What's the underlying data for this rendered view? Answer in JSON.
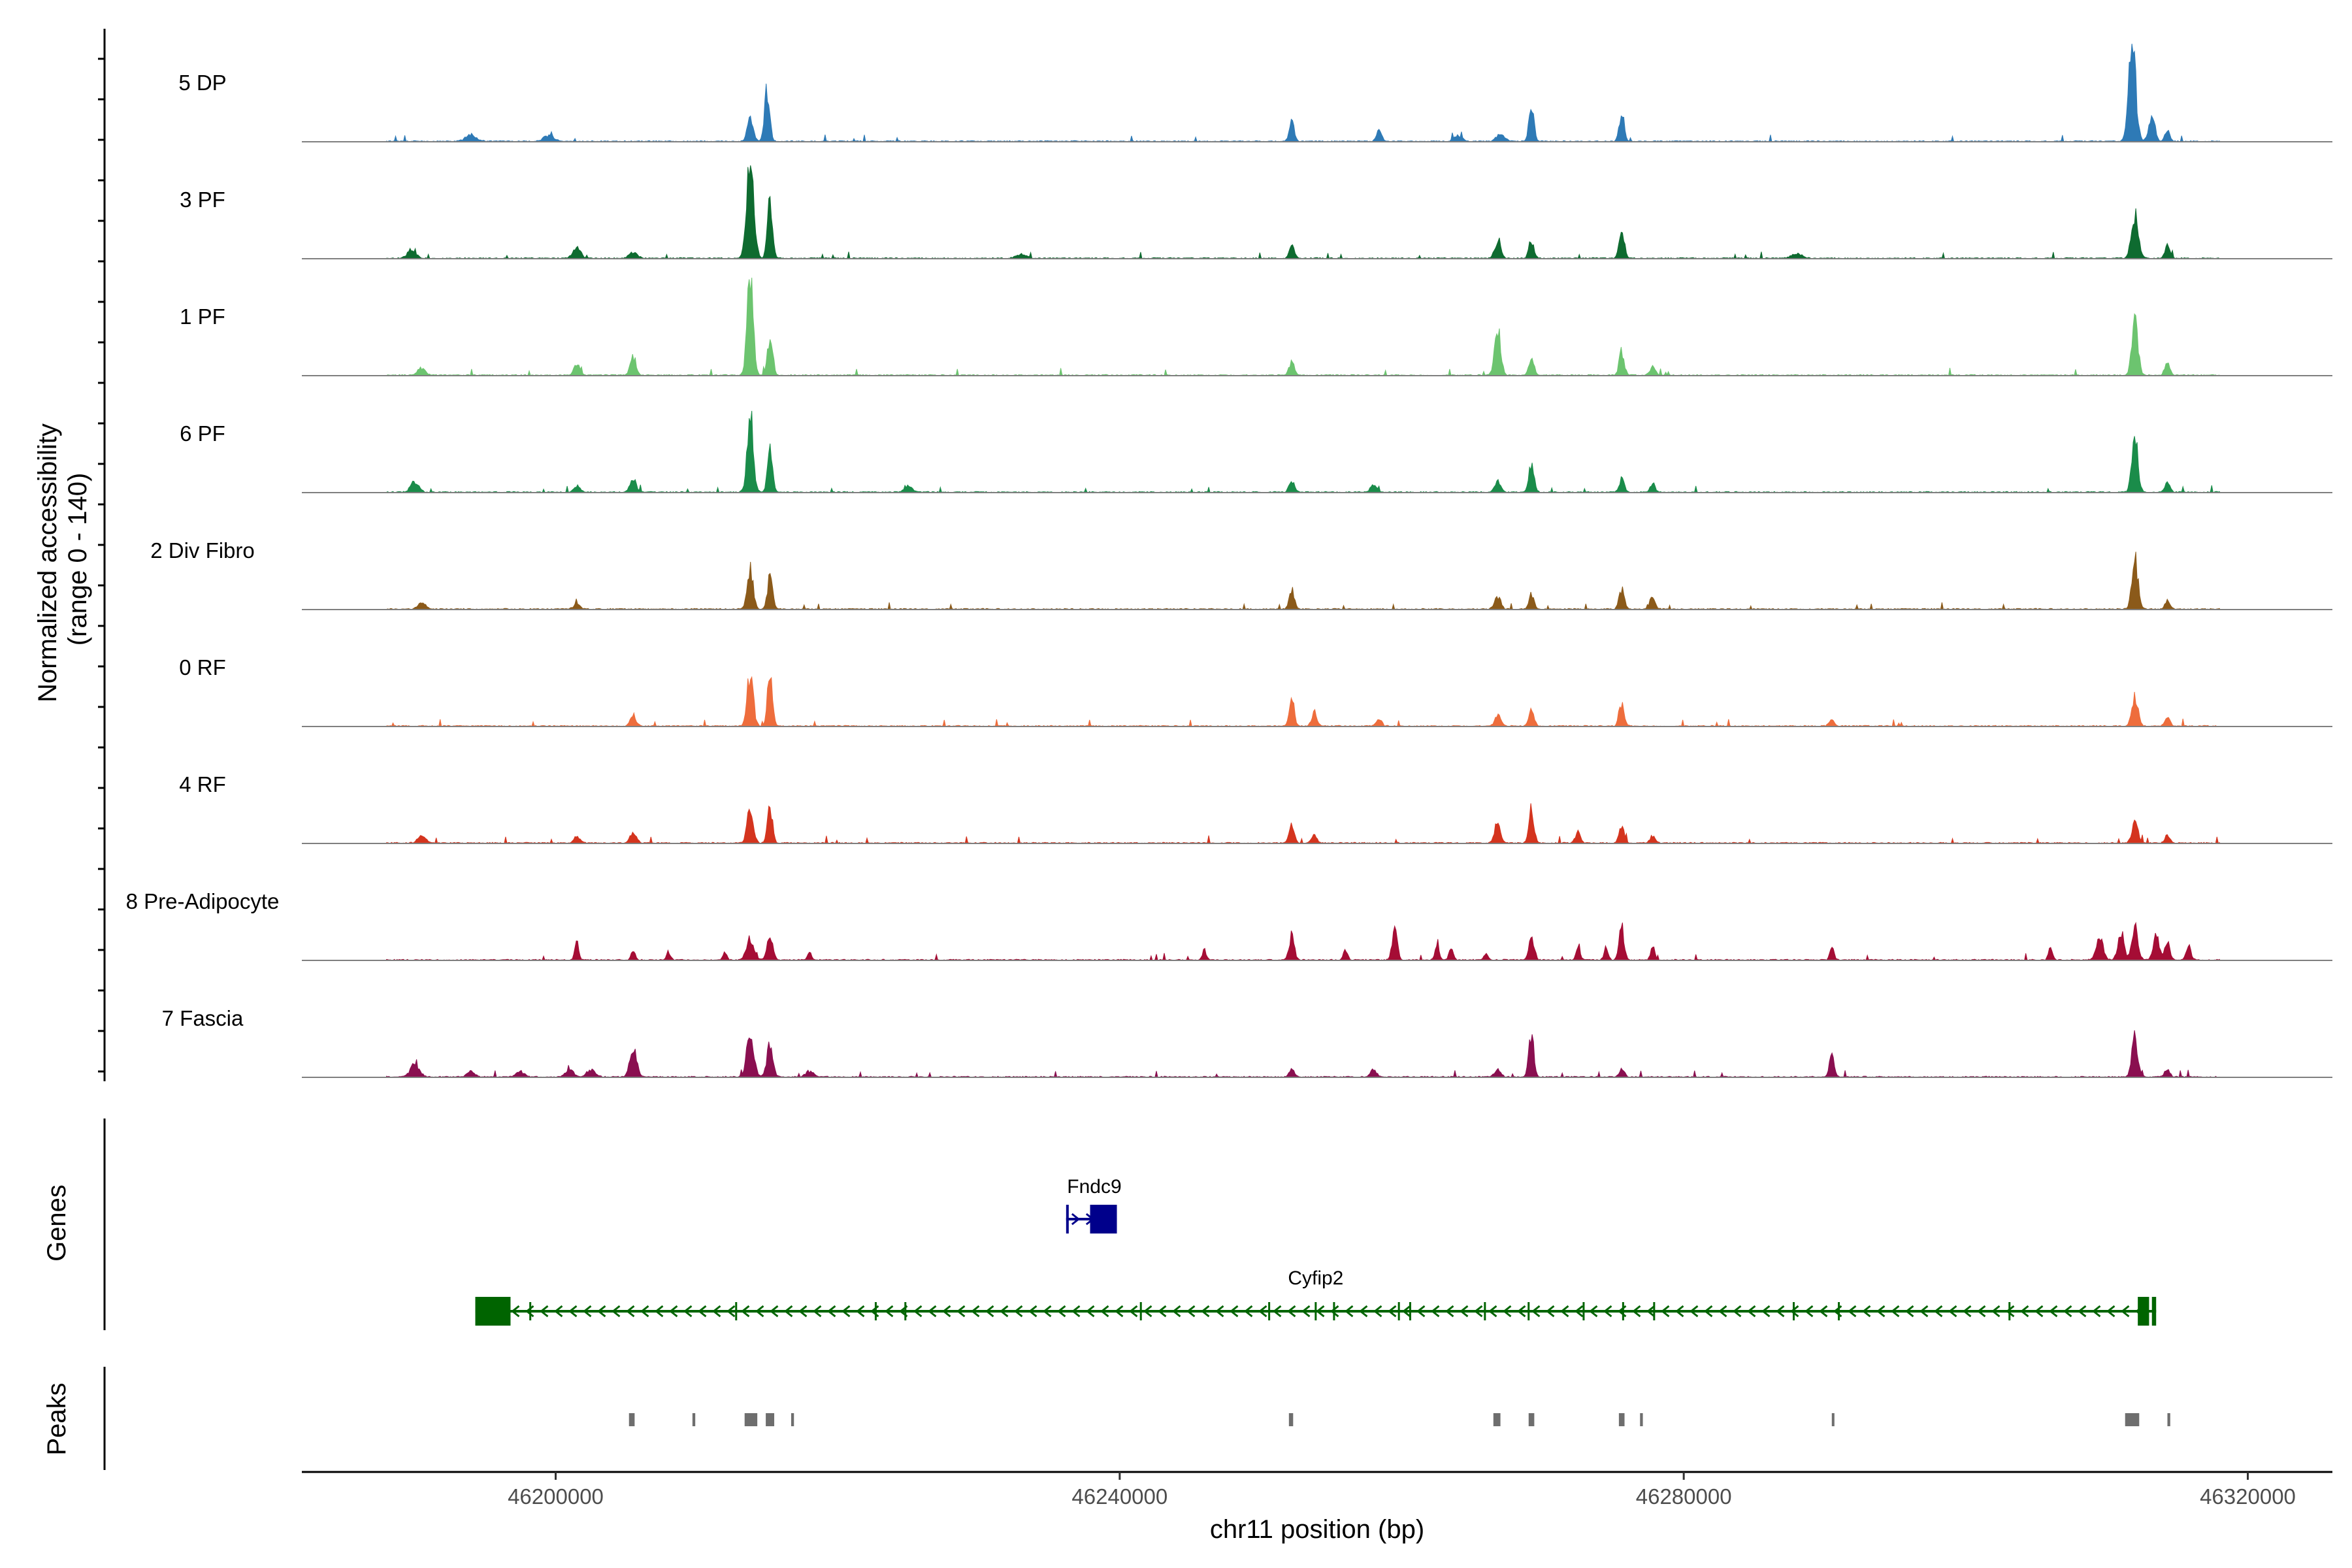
{
  "chart_data": {
    "type": "area",
    "title": "",
    "xlabel": "chr11 position (bp)",
    "ylabel": "Normalized accessibility\n(range 0 - 140)",
    "ylabel_lines": [
      "Normalized accessibility",
      "(range 0 - 140)"
    ],
    "ylim": [
      0,
      140
    ],
    "xlim": [
      46182000,
      46326000
    ],
    "x_ticks": [
      46200000,
      46240000,
      46280000,
      46320000
    ],
    "x_tick_labels": [
      "46200000",
      "46240000",
      "46280000",
      "46320000"
    ],
    "coverage_range": [
      46188000,
      46318000
    ],
    "series": [
      {
        "name": "5 DP",
        "color": "#2e7ab6",
        "peaks": [
          [
            46213800,
            30,
            300
          ],
          [
            46215000,
            75,
            250
          ],
          [
            46252200,
            28,
            250
          ],
          [
            46258400,
            15,
            250
          ],
          [
            46264000,
            8,
            400
          ],
          [
            46267000,
            10,
            400
          ],
          [
            46269200,
            45,
            250
          ],
          [
            46275600,
            40,
            250
          ],
          [
            46311800,
            140,
            350
          ],
          [
            46313200,
            38,
            300
          ],
          [
            46314300,
            15,
            250
          ],
          [
            46194000,
            10,
            500
          ],
          [
            46199500,
            8,
            500
          ]
        ]
      },
      {
        "name": "3 PF",
        "color": "#0e6b30",
        "peaks": [
          [
            46213800,
            140,
            350
          ],
          [
            46215200,
            80,
            250
          ],
          [
            46189800,
            12,
            400
          ],
          [
            46201500,
            15,
            400
          ],
          [
            46205500,
            8,
            400
          ],
          [
            46252200,
            20,
            250
          ],
          [
            46266800,
            25,
            300
          ],
          [
            46269200,
            25,
            250
          ],
          [
            46275600,
            45,
            250
          ],
          [
            46312000,
            60,
            350
          ],
          [
            46314300,
            20,
            250
          ],
          [
            46233000,
            6,
            500
          ],
          [
            46288000,
            7,
            500
          ]
        ]
      },
      {
        "name": "1 PF",
        "color": "#6cc46f",
        "peaks": [
          [
            46213800,
            140,
            300
          ],
          [
            46215200,
            55,
            250
          ],
          [
            46190500,
            10,
            400
          ],
          [
            46201500,
            15,
            300
          ],
          [
            46205500,
            25,
            300
          ],
          [
            46252200,
            20,
            250
          ],
          [
            46266800,
            70,
            300
          ],
          [
            46269200,
            25,
            250
          ],
          [
            46275600,
            35,
            250
          ],
          [
            46277800,
            15,
            250
          ],
          [
            46312000,
            80,
            300
          ],
          [
            46314300,
            20,
            250
          ]
        ]
      },
      {
        "name": "6 PF",
        "color": "#1a8c4a",
        "peaks": [
          [
            46213800,
            115,
            300
          ],
          [
            46215200,
            55,
            250
          ],
          [
            46190000,
            15,
            400
          ],
          [
            46201500,
            10,
            300
          ],
          [
            46205500,
            20,
            300
          ],
          [
            46225000,
            8,
            400
          ],
          [
            46252200,
            18,
            250
          ],
          [
            46258000,
            10,
            300
          ],
          [
            46266800,
            15,
            300
          ],
          [
            46269200,
            40,
            250
          ],
          [
            46275600,
            18,
            250
          ],
          [
            46277800,
            12,
            250
          ],
          [
            46312000,
            75,
            300
          ],
          [
            46314300,
            15,
            250
          ]
        ]
      },
      {
        "name": "2 Div Fibro",
        "color": "#8b5a1a",
        "peaks": [
          [
            46213800,
            55,
            300
          ],
          [
            46215200,
            48,
            250
          ],
          [
            46190500,
            8,
            400
          ],
          [
            46201500,
            8,
            300
          ],
          [
            46252200,
            30,
            250
          ],
          [
            46266800,
            18,
            300
          ],
          [
            46269200,
            20,
            250
          ],
          [
            46275600,
            28,
            250
          ],
          [
            46277800,
            20,
            250
          ],
          [
            46312000,
            70,
            300
          ],
          [
            46314300,
            12,
            250
          ]
        ]
      },
      {
        "name": "0 RF",
        "color": "#ee6d3c",
        "peaks": [
          [
            46213800,
            75,
            300
          ],
          [
            46215200,
            75,
            250
          ],
          [
            46205500,
            15,
            300
          ],
          [
            46252200,
            35,
            250
          ],
          [
            46253800,
            20,
            250
          ],
          [
            46258400,
            10,
            250
          ],
          [
            46266800,
            15,
            300
          ],
          [
            46269200,
            25,
            250
          ],
          [
            46275600,
            30,
            250
          ],
          [
            46290500,
            10,
            250
          ],
          [
            46312000,
            40,
            300
          ],
          [
            46314300,
            12,
            250
          ]
        ]
      },
      {
        "name": "4 RF",
        "color": "#d4341e",
        "peaks": [
          [
            46213800,
            50,
            300
          ],
          [
            46215200,
            50,
            250
          ],
          [
            46190500,
            10,
            400
          ],
          [
            46201500,
            10,
            300
          ],
          [
            46205500,
            15,
            300
          ],
          [
            46252200,
            25,
            250
          ],
          [
            46253800,
            12,
            250
          ],
          [
            46266800,
            30,
            300
          ],
          [
            46269200,
            45,
            250
          ],
          [
            46272500,
            15,
            250
          ],
          [
            46275600,
            25,
            250
          ],
          [
            46277800,
            10,
            250
          ],
          [
            46312000,
            30,
            300
          ],
          [
            46314300,
            10,
            250
          ]
        ]
      },
      {
        "name": "8 Pre-Adipocyte",
        "color": "#a50d35",
        "peaks": [
          [
            46213800,
            32,
            350
          ],
          [
            46215200,
            35,
            300
          ],
          [
            46201500,
            25,
            200
          ],
          [
            46205500,
            15,
            200
          ],
          [
            46208000,
            12,
            200
          ],
          [
            46212000,
            10,
            200
          ],
          [
            46218000,
            12,
            200
          ],
          [
            46246000,
            15,
            200
          ],
          [
            46252200,
            35,
            250
          ],
          [
            46256000,
            15,
            200
          ],
          [
            46259500,
            45,
            250
          ],
          [
            46262500,
            20,
            200
          ],
          [
            46263500,
            20,
            200
          ],
          [
            46266000,
            10,
            200
          ],
          [
            46269200,
            30,
            250
          ],
          [
            46272500,
            20,
            200
          ],
          [
            46274500,
            18,
            200
          ],
          [
            46275600,
            45,
            250
          ],
          [
            46277800,
            20,
            200
          ],
          [
            46290500,
            20,
            200
          ],
          [
            46306000,
            15,
            200
          ],
          [
            46309500,
            30,
            350
          ],
          [
            46311000,
            40,
            300
          ],
          [
            46312000,
            45,
            300
          ],
          [
            46313500,
            35,
            300
          ],
          [
            46314300,
            30,
            250
          ],
          [
            46315800,
            20,
            250
          ]
        ]
      },
      {
        "name": "7 Fascia",
        "color": "#8a0f50",
        "peaks": [
          [
            46190000,
            18,
            450
          ],
          [
            46194000,
            8,
            400
          ],
          [
            46197500,
            8,
            400
          ],
          [
            46201000,
            10,
            400
          ],
          [
            46202500,
            10,
            400
          ],
          [
            46205500,
            40,
            350
          ],
          [
            46213800,
            60,
            350
          ],
          [
            46215200,
            45,
            300
          ],
          [
            46218000,
            8,
            400
          ],
          [
            46252200,
            12,
            250
          ],
          [
            46258000,
            10,
            300
          ],
          [
            46266800,
            12,
            300
          ],
          [
            46269200,
            60,
            250
          ],
          [
            46275600,
            12,
            250
          ],
          [
            46290500,
            30,
            250
          ],
          [
            46312000,
            55,
            300
          ],
          [
            46314300,
            12,
            250
          ]
        ]
      }
    ],
    "genes": [
      {
        "name": "Fndc9",
        "color": "#00008b",
        "strand": "+",
        "start": 46236200,
        "end": 46239800,
        "exons": [
          [
            46236200,
            46236300
          ],
          [
            46237900,
            46239800
          ]
        ]
      },
      {
        "name": "Cyfip2",
        "color": "#006400",
        "strand": "-",
        "start": 46194300,
        "end": 46313500,
        "exons": [
          [
            46194300,
            46196800
          ],
          [
            46312200,
            46313000
          ],
          [
            46313200,
            46313500
          ]
        ],
        "introns_ticks": [
          46198200,
          46212800,
          46222700,
          46224800,
          46241500,
          46250600,
          46253900,
          46255200,
          46259800,
          46260600,
          46265900,
          46269000,
          46272900,
          46275700,
          46277900,
          46287800,
          46291000,
          46303100
        ]
      }
    ],
    "peaks_track": [
      [
        46205200,
        46205600
      ],
      [
        46209700,
        46209900
      ],
      [
        46213400,
        46214300
      ],
      [
        46214900,
        46215500
      ],
      [
        46216700,
        46216900
      ],
      [
        46252000,
        46252300
      ],
      [
        46266500,
        46267000
      ],
      [
        46269000,
        46269400
      ],
      [
        46275400,
        46275800
      ],
      [
        46276900,
        46277100
      ],
      [
        46290500,
        46290600
      ],
      [
        46311300,
        46312300
      ],
      [
        46314300,
        46314500
      ]
    ],
    "panels": [
      "Genes",
      "Peaks"
    ]
  }
}
